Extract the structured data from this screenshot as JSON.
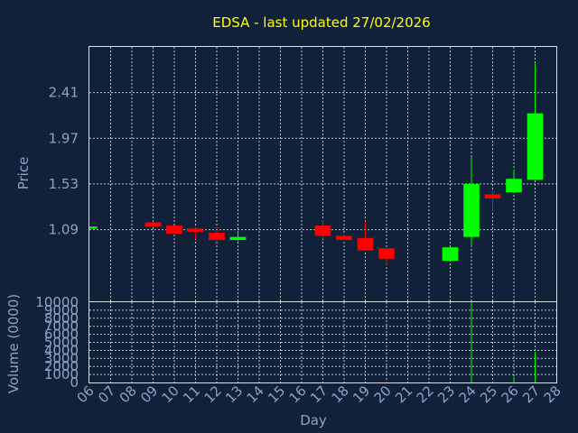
{
  "chart_data": {
    "type": "candlestick",
    "title": "EDSA - last updated 27/02/2026",
    "xlabel": "Day",
    "price_panel": {
      "ylabel": "Price",
      "yticks": [
        "1.09",
        "1.53",
        "1.97",
        "2.41"
      ],
      "ylim": [
        0.4,
        2.85
      ],
      "grid": true
    },
    "volume_panel": {
      "ylabel": "Volume (0000)",
      "yticks": [
        "0",
        "1000",
        "2000",
        "3000",
        "4000",
        "5000",
        "6000",
        "7000",
        "8000",
        "9000",
        "10000"
      ],
      "ylim": [
        0,
        10000
      ],
      "grid": true
    },
    "xticks": [
      "06",
      "07",
      "08",
      "09",
      "10",
      "11",
      "12",
      "13",
      "14",
      "15",
      "16",
      "17",
      "18",
      "19",
      "20",
      "21",
      "22",
      "23",
      "24",
      "25",
      "26",
      "27",
      "28"
    ],
    "xlim": [
      6,
      28
    ],
    "up_color": "#00ff00",
    "down_color": "#ff0000",
    "candles": [
      {
        "day": 6,
        "open": 1.1,
        "high": 1.12,
        "low": 1.1,
        "close": 1.12,
        "volume": 0
      },
      {
        "day": 9,
        "open": 1.16,
        "high": 1.17,
        "low": 1.12,
        "close": 1.12,
        "volume": 0
      },
      {
        "day": 10,
        "open": 1.13,
        "high": 1.13,
        "low": 1.05,
        "close": 1.05,
        "volume": 0
      },
      {
        "day": 11,
        "open": 1.1,
        "high": 1.11,
        "low": 1.0,
        "close": 1.07,
        "volume": 0
      },
      {
        "day": 12,
        "open": 1.06,
        "high": 1.11,
        "low": 0.98,
        "close": 0.99,
        "volume": 0
      },
      {
        "day": 13,
        "open": 0.99,
        "high": 1.08,
        "low": 0.98,
        "close": 1.02,
        "volume": 0
      },
      {
        "day": 17,
        "open": 1.13,
        "high": 1.18,
        "low": 1.0,
        "close": 1.03,
        "volume": 0
      },
      {
        "day": 18,
        "open": 1.03,
        "high": 1.04,
        "low": 0.99,
        "close": 0.99,
        "volume": 0
      },
      {
        "day": 19,
        "open": 1.01,
        "high": 1.17,
        "low": 0.89,
        "close": 0.89,
        "volume": 0
      },
      {
        "day": 20,
        "open": 0.91,
        "high": 0.91,
        "low": 0.75,
        "close": 0.81,
        "volume": 200
      },
      {
        "day": 23,
        "open": 0.79,
        "high": 0.93,
        "low": 0.79,
        "close": 0.92,
        "volume": 0
      },
      {
        "day": 24,
        "open": 1.02,
        "high": 1.8,
        "low": 0.92,
        "close": 1.53,
        "volume": 10000
      },
      {
        "day": 25,
        "open": 1.43,
        "high": 1.47,
        "low": 1.26,
        "close": 1.39,
        "volume": 200
      },
      {
        "day": 26,
        "open": 1.45,
        "high": 1.67,
        "low": 1.45,
        "close": 1.58,
        "volume": 700
      },
      {
        "day": 27,
        "open": 1.57,
        "high": 2.69,
        "low": 1.57,
        "close": 2.21,
        "volume": 3800
      }
    ]
  }
}
